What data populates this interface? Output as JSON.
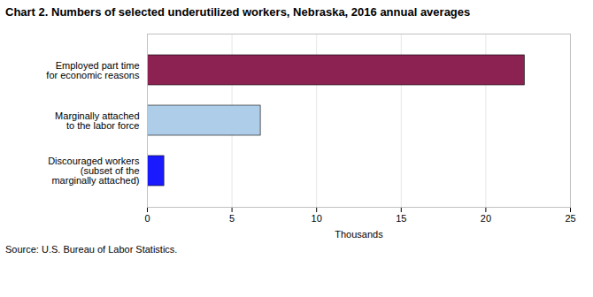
{
  "chart_data": {
    "type": "bar",
    "orientation": "horizontal",
    "title": "Chart 2.  Numbers  of selected underutilized workers, Nebraska, 2016  annual averages",
    "categories": [
      "Discouraged workers\n(subset of the\nmarginally attached)",
      "Marginally attached\nto the labor force",
      "Employed part time\nfor economic reasons"
    ],
    "values": [
      1.0,
      6.7,
      22.3
    ],
    "colors": [
      "#1a1aff",
      "#aecde8",
      "#8b2252"
    ],
    "xlabel": "Thousands",
    "xlim": [
      0,
      25
    ],
    "xticks": [
      0,
      5,
      10,
      15,
      20,
      25
    ],
    "grid": true,
    "source": "Source: U.S. Bureau of Labor Statistics."
  }
}
